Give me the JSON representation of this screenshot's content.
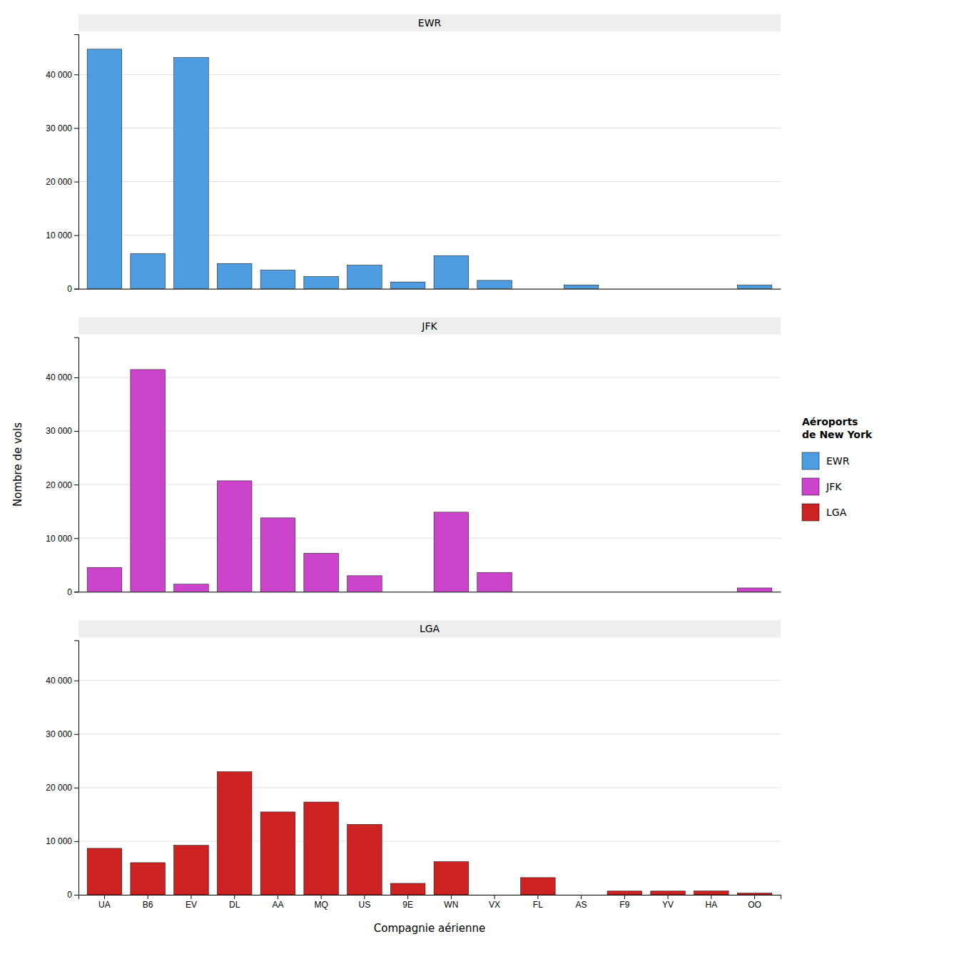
{
  "chart_data": {
    "type": "bar",
    "categories": [
      "UA",
      "B6",
      "EV",
      "DL",
      "AA",
      "MQ",
      "US",
      "9E",
      "WN",
      "VX",
      "FL",
      "AS",
      "F9",
      "YV",
      "HA",
      "OO"
    ],
    "series": [
      {
        "name": "EWR",
        "color": "#4D9DE0",
        "values": [
          44719,
          6557,
          43152,
          4721,
          3487,
          2276,
          4405,
          1268,
          6188,
          1566,
          0,
          714,
          0,
          0,
          0,
          693
        ]
      },
      {
        "name": "JFK",
        "color": "#CC44CC",
        "values": [
          4534,
          41476,
          1408,
          20701,
          13783,
          7193,
          2996,
          0,
          14847,
          3596,
          0,
          0,
          0,
          0,
          0,
          714
        ]
      },
      {
        "name": "LGA",
        "color": "#CC2222",
        "values": [
          8669,
          6002,
          9227,
          22973,
          15459,
          17310,
          13136,
          2132,
          6188,
          0,
          3209,
          0,
          693,
          693,
          714,
          315
        ]
      }
    ],
    "xlabel": "Compagnie aérienne",
    "ylabel": "Nombre de vols",
    "legend_title": "Aéroports\nde New York",
    "ylim": [
      0,
      47500
    ],
    "yticks": [
      0,
      {
        "value": 10000,
        "label": "10 000"
      },
      {
        "value": 20000,
        "label": "20 000"
      },
      {
        "value": 30000,
        "label": "30 000"
      },
      {
        "value": 40000,
        "label": "40 000"
      }
    ],
    "grid": true,
    "legend": "right"
  }
}
